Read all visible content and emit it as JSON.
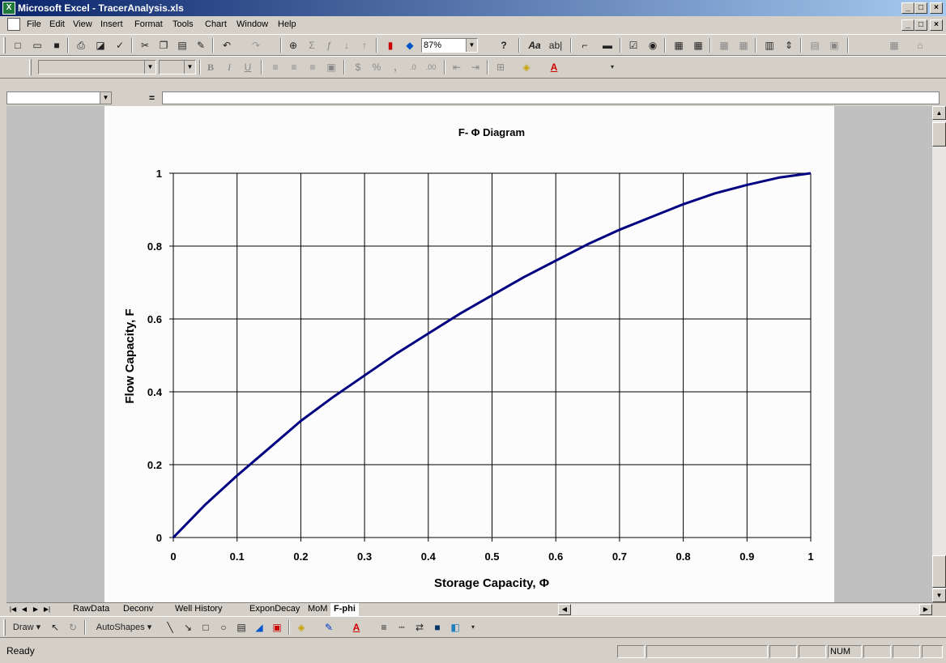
{
  "window": {
    "title": "Microsoft Excel - TracerAnalysis.xls",
    "minimize": "_",
    "restore": "□",
    "close": "×"
  },
  "menu": {
    "items": [
      "File",
      "Edit",
      "View",
      "Insert",
      "Format",
      "Tools",
      "Chart",
      "Window",
      "Help"
    ]
  },
  "standard_toolbar": {
    "zoom": "87%",
    "help_glyph": "?",
    "font_format_labels": [
      "Aa",
      "ab|"
    ]
  },
  "formatting_toolbar": {
    "font_name": "",
    "font_size": "",
    "bold": "B",
    "italic": "I",
    "underline": "U",
    "currency": "$",
    "percent": "%",
    "comma": ","
  },
  "formula_bar": {
    "name_box": "",
    "equals": "=",
    "formula": ""
  },
  "chart_data": {
    "type": "line",
    "title": "F- Φ Diagram",
    "xlabel": "Storage Capacity, Φ",
    "ylabel": "Flow Capacity, F",
    "xlim": [
      0,
      1
    ],
    "ylim": [
      0,
      1
    ],
    "x_ticks": [
      "0",
      "0.1",
      "0.2",
      "0.3",
      "0.4",
      "0.5",
      "0.6",
      "0.7",
      "0.8",
      "0.9",
      "1"
    ],
    "y_ticks": [
      "0",
      "0.2",
      "0.4",
      "0.6",
      "0.8",
      "1"
    ],
    "grid": true,
    "line_color": "#000080",
    "series": [
      {
        "x": [
          0,
          0.05,
          0.1,
          0.15,
          0.2,
          0.25,
          0.3,
          0.35,
          0.4,
          0.45,
          0.5,
          0.55,
          0.6,
          0.65,
          0.7,
          0.75,
          0.8,
          0.85,
          0.9,
          0.95,
          1.0
        ],
        "y": [
          0,
          0.09,
          0.17,
          0.245,
          0.32,
          0.385,
          0.445,
          0.505,
          0.56,
          0.615,
          0.665,
          0.715,
          0.76,
          0.805,
          0.845,
          0.88,
          0.915,
          0.945,
          0.968,
          0.988,
          1.0
        ]
      }
    ]
  },
  "sheet_tabs": {
    "tabs": [
      "RawData",
      "Deconv",
      "Well History",
      "ExponDecay",
      "MoM",
      "F-phi"
    ],
    "active": "F-phi"
  },
  "drawing_toolbar": {
    "draw_label": "Draw",
    "autoshapes_label": "AutoShapes"
  },
  "status": {
    "text": "Ready",
    "num": "NUM"
  }
}
